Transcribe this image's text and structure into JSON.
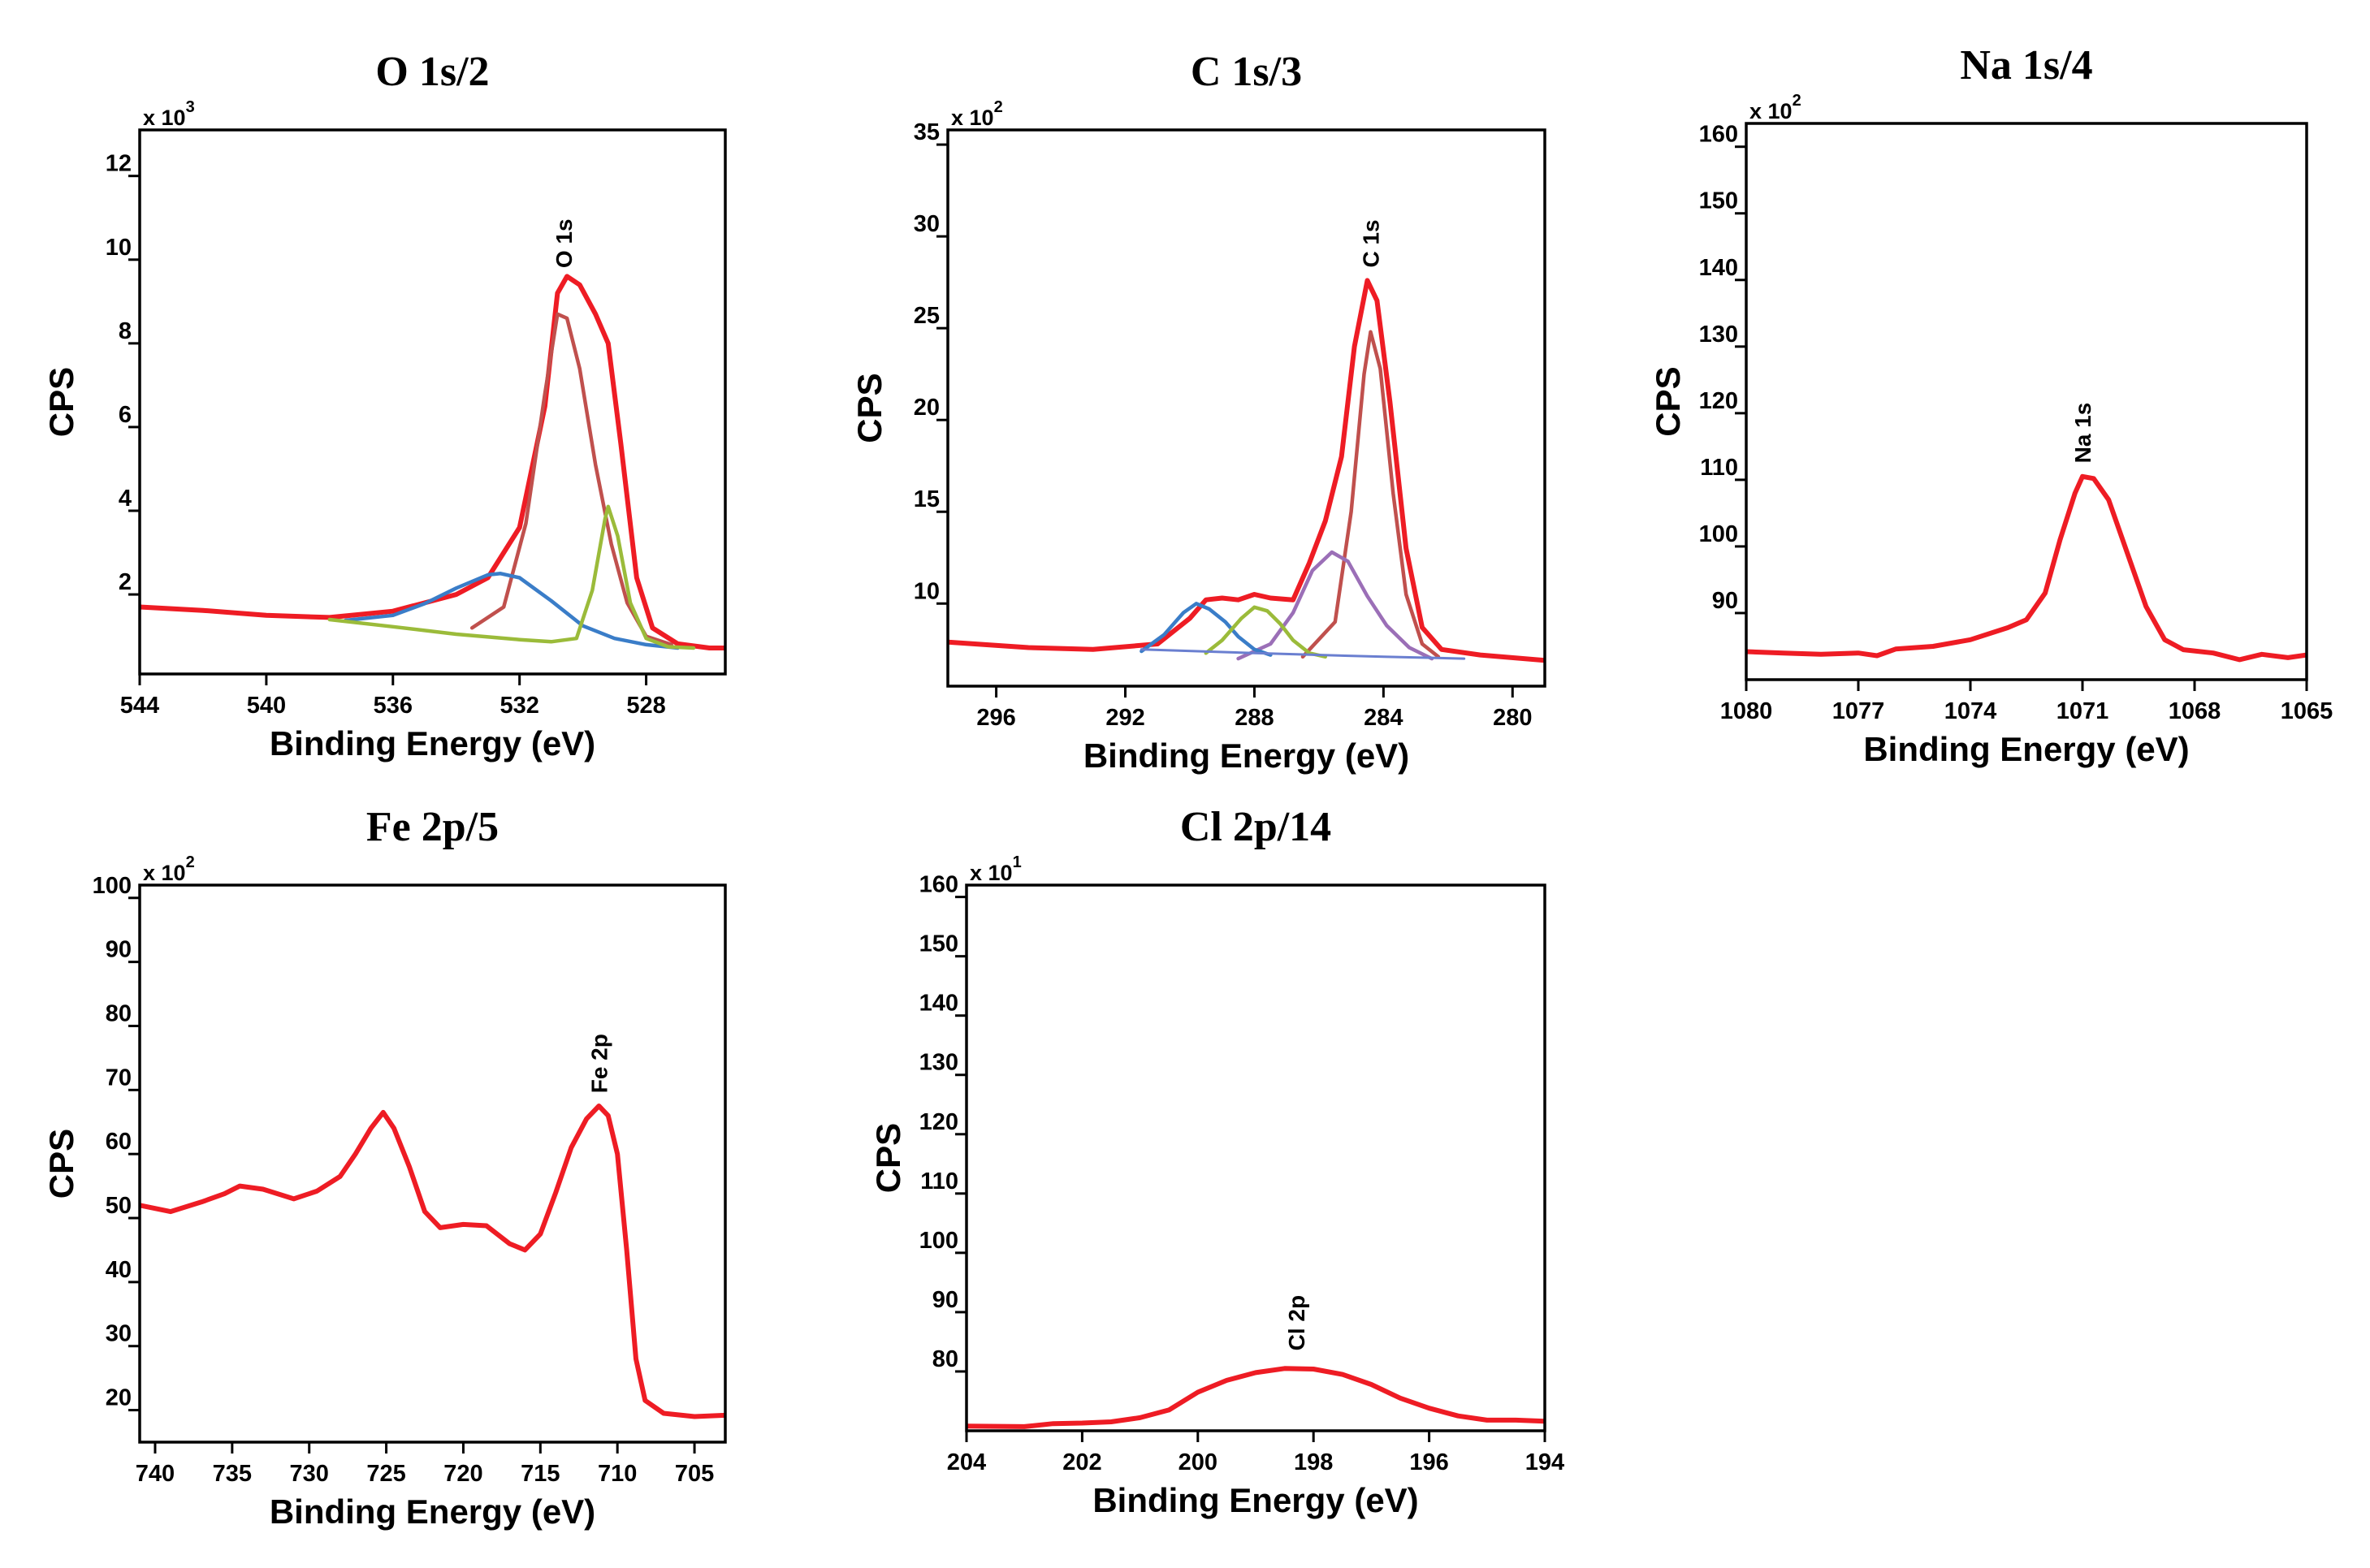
{
  "colors": {
    "envelope": "#ee1c24",
    "component_brown": "#c0504d",
    "component_blue": "#3a7dc8",
    "component_olive": "#9bbb3a",
    "component_purple": "#9b6fb7",
    "baseline": "#6a7fd0"
  },
  "chart_data": [
    {
      "type": "line",
      "title": "O 1s/2",
      "xlabel": "Binding Energy (eV)",
      "ylabel": "CPS",
      "multiplier": {
        "base": "x 10",
        "exp": "3"
      },
      "xlim": [
        544,
        525.5
      ],
      "ylim": [
        0.1,
        13.1
      ],
      "xticks": [
        544,
        540,
        536,
        532,
        528
      ],
      "yticks": [
        2,
        4,
        6,
        8,
        10,
        12
      ],
      "peak_label": {
        "text": "O 1s",
        "x": 530.6,
        "y": 9.8
      },
      "grid": false,
      "series": [
        {
          "role": "envelope",
          "points": [
            [
              544,
              1.7
            ],
            [
              542,
              1.62
            ],
            [
              540,
              1.5
            ],
            [
              538,
              1.45
            ],
            [
              536,
              1.6
            ],
            [
              534,
              2.0
            ],
            [
              533,
              2.4
            ],
            [
              532,
              3.6
            ],
            [
              531.2,
              6.5
            ],
            [
              530.8,
              9.2
            ],
            [
              530.5,
              9.6
            ],
            [
              530.1,
              9.4
            ],
            [
              529.6,
              8.7
            ],
            [
              529.2,
              8.0
            ],
            [
              528.8,
              5.6
            ],
            [
              528.3,
              2.4
            ],
            [
              527.8,
              1.2
            ],
            [
              527,
              0.82
            ],
            [
              526,
              0.72
            ],
            [
              525.5,
              0.72
            ]
          ]
        },
        {
          "role": "component",
          "color": "brown",
          "points": [
            [
              533.5,
              1.2
            ],
            [
              532.5,
              1.7
            ],
            [
              531.8,
              3.7
            ],
            [
              531.2,
              6.8
            ],
            [
              530.8,
              8.7
            ],
            [
              530.5,
              8.6
            ],
            [
              530.1,
              7.4
            ],
            [
              529.6,
              5.1
            ],
            [
              529.1,
              3.2
            ],
            [
              528.6,
              1.8
            ],
            [
              528.0,
              1.0
            ],
            [
              527.2,
              0.8
            ]
          ]
        },
        {
          "role": "component",
          "color": "blue",
          "points": [
            [
              537.5,
              1.38
            ],
            [
              536,
              1.5
            ],
            [
              535,
              1.78
            ],
            [
              534,
              2.15
            ],
            [
              533,
              2.47
            ],
            [
              532.6,
              2.5
            ],
            [
              532,
              2.4
            ],
            [
              531,
              1.85
            ],
            [
              530,
              1.25
            ],
            [
              529,
              0.95
            ],
            [
              528,
              0.8
            ],
            [
              527,
              0.72
            ]
          ]
        },
        {
          "role": "component",
          "color": "olive",
          "points": [
            [
              538,
              1.4
            ],
            [
              536,
              1.23
            ],
            [
              534,
              1.05
            ],
            [
              532,
              0.92
            ],
            [
              531,
              0.87
            ],
            [
              530.2,
              0.95
            ],
            [
              529.7,
              2.1
            ],
            [
              529.3,
              3.8
            ],
            [
              529.2,
              4.1
            ],
            [
              528.9,
              3.4
            ],
            [
              528.5,
              1.8
            ],
            [
              528,
              0.95
            ],
            [
              527.3,
              0.75
            ],
            [
              526.5,
              0.72
            ]
          ]
        }
      ]
    },
    {
      "type": "line",
      "title": "C 1s/3",
      "xlabel": "Binding Energy (eV)",
      "ylabel": "CPS",
      "multiplier": {
        "base": "x 10",
        "exp": "2"
      },
      "xlim": [
        297.5,
        279
      ],
      "ylim": [
        5.5,
        35.8
      ],
      "xticks": [
        296,
        292,
        288,
        284,
        280
      ],
      "yticks": [
        10,
        15,
        20,
        25,
        30,
        35
      ],
      "peak_label": {
        "text": "C 1s",
        "x": 284.4,
        "y": 28.3
      },
      "grid": false,
      "series": [
        {
          "role": "envelope",
          "points": [
            [
              297.5,
              7.9
            ],
            [
              295,
              7.6
            ],
            [
              293,
              7.5
            ],
            [
              291,
              7.8
            ],
            [
              290,
              9.2
            ],
            [
              289.5,
              10.2
            ],
            [
              289,
              10.3
            ],
            [
              288.5,
              10.2
            ],
            [
              288,
              10.5
            ],
            [
              287.5,
              10.3
            ],
            [
              286.8,
              10.2
            ],
            [
              286.3,
              12.2
            ],
            [
              285.8,
              14.5
            ],
            [
              285.3,
              18.0
            ],
            [
              284.9,
              24.0
            ],
            [
              284.5,
              27.6
            ],
            [
              284.2,
              26.5
            ],
            [
              283.8,
              21.0
            ],
            [
              283.3,
              13.0
            ],
            [
              282.8,
              8.7
            ],
            [
              282.2,
              7.5
            ],
            [
              281,
              7.2
            ],
            [
              279,
              6.9
            ]
          ]
        },
        {
          "role": "component",
          "color": "brown",
          "points": [
            [
              286.5,
              7.1
            ],
            [
              285.5,
              9.0
            ],
            [
              285,
              15.0
            ],
            [
              284.6,
              22.5
            ],
            [
              284.4,
              24.8
            ],
            [
              284.1,
              22.8
            ],
            [
              283.7,
              16.0
            ],
            [
              283.3,
              10.5
            ],
            [
              282.8,
              7.8
            ],
            [
              282.3,
              7.1
            ]
          ]
        },
        {
          "role": "component",
          "color": "purple",
          "points": [
            [
              288.5,
              7.0
            ],
            [
              287.5,
              7.8
            ],
            [
              286.8,
              9.5
            ],
            [
              286.2,
              11.8
            ],
            [
              285.6,
              12.8
            ],
            [
              285.1,
              12.3
            ],
            [
              284.5,
              10.4
            ],
            [
              283.9,
              8.8
            ],
            [
              283.2,
              7.6
            ],
            [
              282.5,
              7.0
            ]
          ]
        },
        {
          "role": "component",
          "color": "blue",
          "points": [
            [
              291.5,
              7.4
            ],
            [
              290.8,
              8.3
            ],
            [
              290.2,
              9.5
            ],
            [
              289.8,
              10.0
            ],
            [
              289.4,
              9.7
            ],
            [
              288.9,
              9.0
            ],
            [
              288.5,
              8.2
            ],
            [
              288,
              7.5
            ],
            [
              287.5,
              7.2
            ]
          ]
        },
        {
          "role": "component",
          "color": "olive",
          "points": [
            [
              289.5,
              7.3
            ],
            [
              289,
              8.0
            ],
            [
              288.4,
              9.2
            ],
            [
              288,
              9.8
            ],
            [
              287.6,
              9.6
            ],
            [
              287.2,
              8.9
            ],
            [
              286.8,
              8.0
            ],
            [
              286.3,
              7.3
            ],
            [
              285.8,
              7.1
            ]
          ]
        },
        {
          "role": "baseline",
          "points": [
            [
              291.5,
              7.5
            ],
            [
              288,
              7.3
            ],
            [
              284,
              7.1
            ],
            [
              281.5,
              7.0
            ]
          ]
        }
      ]
    },
    {
      "type": "line",
      "title": "Na 1s/4",
      "xlabel": "Binding Energy (eV)",
      "ylabel": "CPS",
      "multiplier": {
        "base": "x 10",
        "exp": "2"
      },
      "xlim": [
        1080,
        1065
      ],
      "ylim": [
        80,
        163.5
      ],
      "xticks": [
        1080,
        1077,
        1074,
        1071,
        1068,
        1065
      ],
      "yticks": [
        90,
        100,
        110,
        120,
        130,
        140,
        150,
        160
      ],
      "peak_label": {
        "text": "Na 1s",
        "x": 1071.0,
        "y": 112.5
      },
      "grid": false,
      "series": [
        {
          "role": "envelope",
          "points": [
            [
              1080,
              84.2
            ],
            [
              1079,
              84.0
            ],
            [
              1078,
              83.8
            ],
            [
              1077,
              84.0
            ],
            [
              1076.5,
              83.6
            ],
            [
              1076,
              84.6
            ],
            [
              1075,
              85.0
            ],
            [
              1074,
              86.0
            ],
            [
              1073,
              87.8
            ],
            [
              1072.5,
              89.0
            ],
            [
              1072,
              93.0
            ],
            [
              1071.6,
              101.0
            ],
            [
              1071.2,
              108.0
            ],
            [
              1071.0,
              110.5
            ],
            [
              1070.7,
              110.2
            ],
            [
              1070.3,
              107.0
            ],
            [
              1069.8,
              99.0
            ],
            [
              1069.3,
              91.0
            ],
            [
              1068.8,
              86.0
            ],
            [
              1068.3,
              84.5
            ],
            [
              1067.5,
              84.0
            ],
            [
              1066.8,
              83.0
            ],
            [
              1066.2,
              83.8
            ],
            [
              1065.5,
              83.3
            ],
            [
              1065,
              83.7
            ]
          ]
        }
      ]
    },
    {
      "type": "line",
      "title": "Fe 2p/5",
      "xlabel": "Binding Energy (eV)",
      "ylabel": "CPS",
      "multiplier": {
        "base": "x 10",
        "exp": "2"
      },
      "xlim": [
        741,
        703
      ],
      "ylim": [
        15,
        102
      ],
      "xticks": [
        740,
        735,
        730,
        725,
        720,
        715,
        710,
        705
      ],
      "yticks": [
        20,
        30,
        40,
        50,
        60,
        70,
        80,
        90,
        100
      ],
      "peak_label": {
        "text": "Fe 2p",
        "x": 711.2,
        "y": 69.5
      },
      "grid": false,
      "series": [
        {
          "role": "envelope",
          "points": [
            [
              741,
              52.0
            ],
            [
              739,
              51.0
            ],
            [
              737,
              52.5
            ],
            [
              735.5,
              53.8
            ],
            [
              734.5,
              55.0
            ],
            [
              733,
              54.5
            ],
            [
              731,
              53.0
            ],
            [
              729.5,
              54.2
            ],
            [
              728,
              56.5
            ],
            [
              727,
              60.0
            ],
            [
              726,
              64.0
            ],
            [
              725.2,
              66.5
            ],
            [
              724.5,
              64.0
            ],
            [
              723.5,
              58.0
            ],
            [
              722.5,
              51.0
            ],
            [
              721.5,
              48.5
            ],
            [
              720,
              49.0
            ],
            [
              718.5,
              48.8
            ],
            [
              717,
              46.0
            ],
            [
              716,
              45.0
            ],
            [
              715,
              47.5
            ],
            [
              714,
              54.0
            ],
            [
              713,
              61.0
            ],
            [
              712,
              65.5
            ],
            [
              711.2,
              67.5
            ],
            [
              710.6,
              66.0
            ],
            [
              710.0,
              60.0
            ],
            [
              709.4,
              45.0
            ],
            [
              708.8,
              28.0
            ],
            [
              708.2,
              21.5
            ],
            [
              707,
              19.5
            ],
            [
              705,
              19.0
            ],
            [
              703,
              19.2
            ]
          ]
        }
      ]
    },
    {
      "type": "line",
      "title": "Cl 2p/14",
      "xlabel": "Binding Energy (eV)",
      "ylabel": "CPS",
      "multiplier": {
        "base": "x 10",
        "exp": "1"
      },
      "xlim": [
        204,
        194
      ],
      "ylim": [
        70,
        162
      ],
      "xticks": [
        204,
        202,
        200,
        198,
        196,
        194
      ],
      "yticks": [
        80,
        90,
        100,
        110,
        120,
        130,
        140,
        150,
        160
      ],
      "peak_label": {
        "text": "Cl 2p",
        "x": 198.3,
        "y": 83.5
      },
      "grid": false,
      "series": [
        {
          "role": "envelope",
          "points": [
            [
              204,
              70.8
            ],
            [
              203,
              70.7
            ],
            [
              202.5,
              71.2
            ],
            [
              202,
              71.3
            ],
            [
              201.5,
              71.5
            ],
            [
              201,
              72.2
            ],
            [
              200.5,
              73.5
            ],
            [
              200,
              76.5
            ],
            [
              199.5,
              78.5
            ],
            [
              199,
              79.8
            ],
            [
              198.5,
              80.5
            ],
            [
              198,
              80.4
            ],
            [
              197.5,
              79.5
            ],
            [
              197,
              77.8
            ],
            [
              196.5,
              75.5
            ],
            [
              196,
              73.8
            ],
            [
              195.5,
              72.5
            ],
            [
              195,
              71.8
            ],
            [
              194.5,
              71.8
            ],
            [
              194,
              71.6
            ]
          ]
        }
      ]
    }
  ]
}
